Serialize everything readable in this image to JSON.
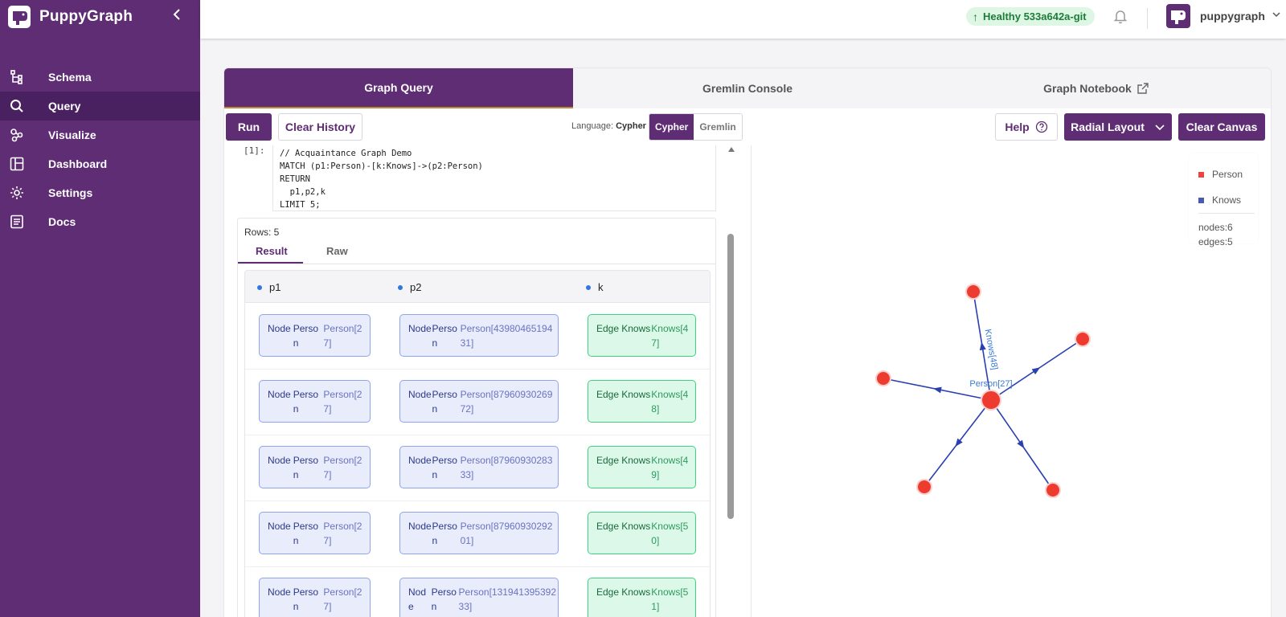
{
  "app": {
    "name": "PuppyGraph",
    "collapse_icon": "chevron-left-icon"
  },
  "sidebar": {
    "items": [
      {
        "label": "Schema",
        "icon": "schema-icon"
      },
      {
        "label": "Query",
        "icon": "search-icon",
        "active": true
      },
      {
        "label": "Visualize",
        "icon": "visualize-icon"
      },
      {
        "label": "Dashboard",
        "icon": "dashboard-icon"
      },
      {
        "label": "Settings",
        "icon": "gear-icon"
      },
      {
        "label": "Docs",
        "icon": "docs-icon"
      }
    ]
  },
  "header": {
    "health_label": "Healthy 533a642a-git",
    "username": "puppygraph",
    "health_color": "#def7e4"
  },
  "tabs": [
    {
      "label": "Graph Query",
      "active": true
    },
    {
      "label": "Gremlin Console"
    },
    {
      "label": "Graph Notebook",
      "icon": "external-link-icon"
    }
  ],
  "toolbar": {
    "run_label": "Run",
    "clear_history_label": "Clear History",
    "language_prefix": "Language:",
    "language_value": "Cypher",
    "lang_options": [
      "Cypher",
      "Gremlin"
    ],
    "help_label": "Help",
    "layout_label": "Radial Layout",
    "clear_canvas_label": "Clear Canvas"
  },
  "query": {
    "cell_number": "[1]:",
    "lines": [
      "// Acquaintance Graph Demo",
      "MATCH (p1:Person)-[k:Knows]->(p2:Person)",
      "RETURN",
      "  p1,p2,k",
      "LIMIT 5;"
    ]
  },
  "results": {
    "rows_label": "Rows: 5",
    "tabs": [
      "Result",
      "Raw"
    ],
    "columns": [
      "p1",
      "p2",
      "k"
    ],
    "rows": [
      {
        "p1": [
          "Node",
          "Person",
          "Person[27]"
        ],
        "p2": [
          "Node",
          "Person",
          "Person[4398046519431]"
        ],
        "k": [
          "Edge",
          "Knows",
          "Knows[47]"
        ]
      },
      {
        "p1": [
          "Node",
          "Person",
          "Person[27]"
        ],
        "p2": [
          "Node",
          "Person",
          "Person[8796093026972]"
        ],
        "k": [
          "Edge",
          "Knows",
          "Knows[48]"
        ]
      },
      {
        "p1": [
          "Node",
          "Person",
          "Person[27]"
        ],
        "p2": [
          "Node",
          "Person",
          "Person[8796093028333]"
        ],
        "k": [
          "Edge",
          "Knows",
          "Knows[49]"
        ]
      },
      {
        "p1": [
          "Node",
          "Person",
          "Person[27]"
        ],
        "p2": [
          "Node",
          "Person",
          "Person[8796093029201]"
        ],
        "k": [
          "Edge",
          "Knows",
          "Knows[50]"
        ]
      },
      {
        "p1": [
          "Node",
          "Person",
          "Person[27]"
        ],
        "p2": [
          "Node",
          "Person",
          "Person[13194139539233]"
        ],
        "k": [
          "Edge",
          "Knows",
          "Knows[51]"
        ]
      }
    ]
  },
  "graph": {
    "legend": [
      {
        "label": "Person",
        "color": "#f04040"
      },
      {
        "label": "Knows",
        "color": "#4a5ab0"
      }
    ],
    "nodes_label": "nodes:6",
    "edges_label": "edges:5",
    "center_label": "Person[27]",
    "edge_label": "Knows[48]",
    "node_color": "#ee3b2f",
    "edge_color": "#2a3fb0",
    "label_color": "#3a7bd5"
  }
}
